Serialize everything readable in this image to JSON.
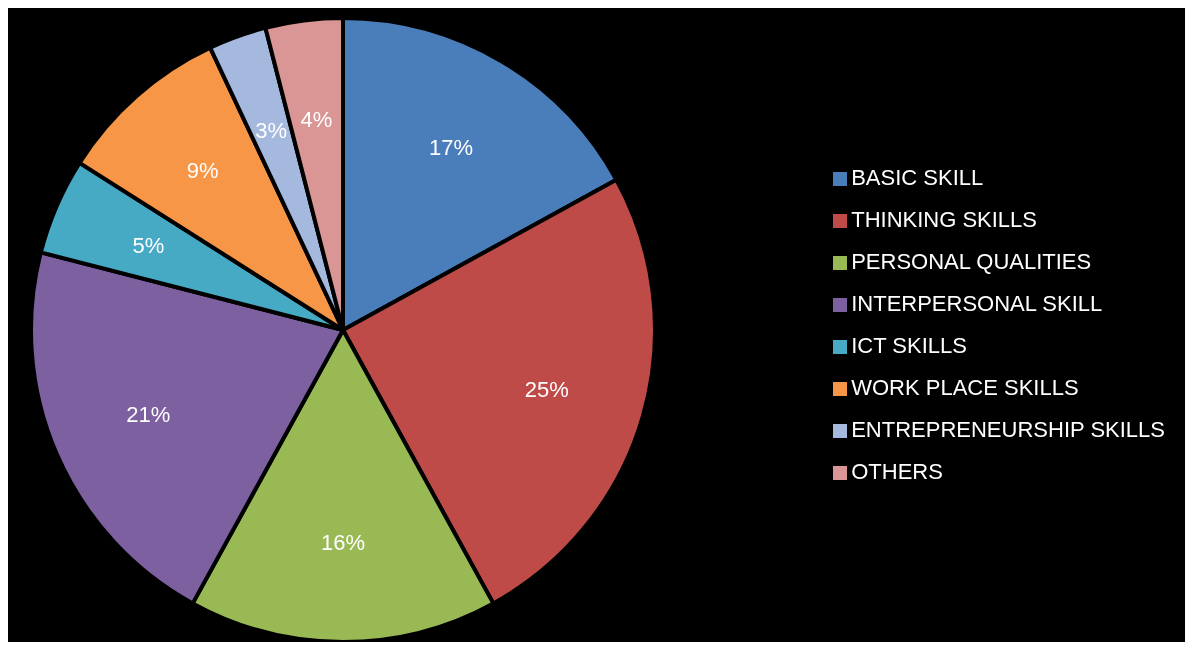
{
  "chart_data": {
    "type": "pie",
    "categories": [
      "BASIC SKILL",
      "THINKING SKILLS",
      "PERSONAL QUALITIES",
      "INTERPERSONAL SKILL",
      "ICT SKILLS",
      "WORK PLACE SKILLS",
      "ENTREPRENEURSHIP SKILLS",
      "OTHERS"
    ],
    "values": [
      17,
      25,
      16,
      21,
      5,
      9,
      3,
      4
    ],
    "colors": [
      "#4a7ebb",
      "#be4b48",
      "#98b954",
      "#7d60a0",
      "#46aac5",
      "#f79646",
      "#a5b9de",
      "#d99694"
    ],
    "value_labels": [
      "17%",
      "25%",
      "16%",
      "21%",
      "5%",
      "9%",
      "3%",
      "4%"
    ],
    "legend": "right"
  }
}
